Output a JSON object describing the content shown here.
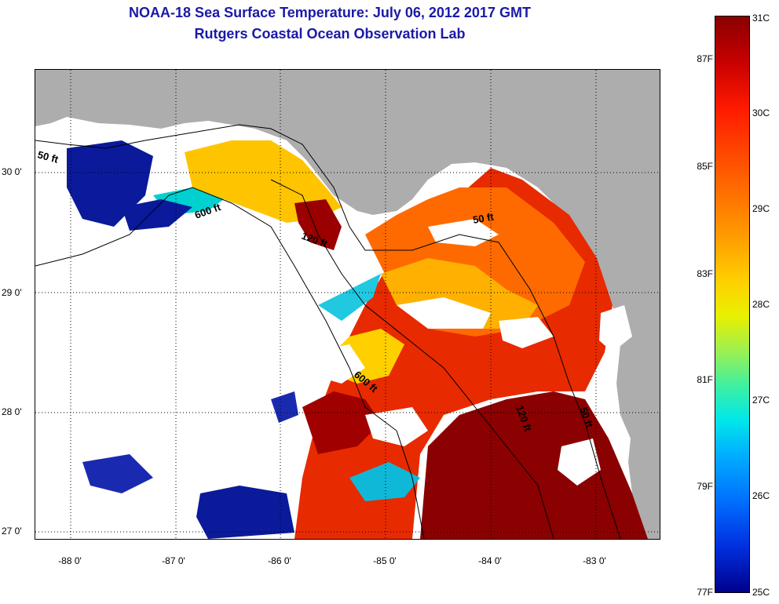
{
  "title": {
    "line1": "NOAA-18 Sea Surface Temperature:  July 06, 2012 2017 GMT",
    "line2": "Rutgers Coastal Ocean Observation Lab"
  },
  "map": {
    "latitude_ticks": [
      "30 0'",
      "29 0'",
      "28 0'",
      "27 0'"
    ],
    "longitude_ticks": [
      "-88 0'",
      "-87 0'",
      "-86 0'",
      "-85 0'",
      "-84 0'",
      "-83 0'"
    ],
    "depth_contour_labels": [
      "50 ft",
      "600 ft",
      "120 ft",
      "50 ft",
      "600 ft",
      "120 ft",
      "50 ft"
    ],
    "colors": {
      "land": "#adadad",
      "cloud": "#ffffff",
      "hot": "#8b0000",
      "warm": "#ff3300",
      "mid": "#ffcc00",
      "cool": "#00cccc",
      "cold": "#0a1a9a"
    }
  },
  "colorbar": {
    "celsius": [
      "31C",
      "30C",
      "29C",
      "28C",
      "27C",
      "26C",
      "25C"
    ],
    "fahrenheit": [
      "87F",
      "85F",
      "83F",
      "81F",
      "79F",
      "77F"
    ],
    "range_celsius": [
      25,
      31
    ]
  }
}
